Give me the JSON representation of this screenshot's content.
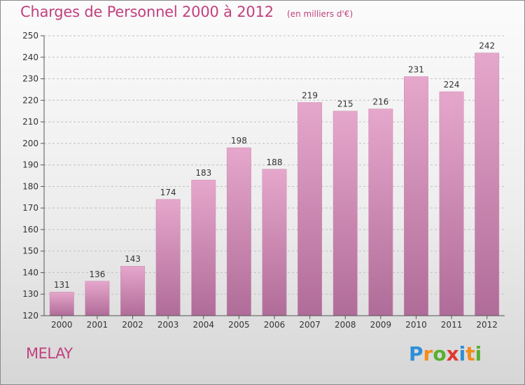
{
  "header": {
    "title": "Charges de Personnel 2000 à 2012",
    "subtitle": "(en milliers d'€)"
  },
  "place": "MELAY",
  "logo": {
    "text": "Proxiti",
    "letters": [
      {
        "ch": "P",
        "color": "#2f8fd8"
      },
      {
        "ch": "r",
        "color": "#f28c1c"
      },
      {
        "ch": "o",
        "color": "#58b030"
      },
      {
        "ch": "x",
        "color": "#e03a2f"
      },
      {
        "ch": "i",
        "color": "#2f8fd8"
      },
      {
        "ch": "t",
        "color": "#f28c1c"
      },
      {
        "ch": "i",
        "color": "#58b030"
      }
    ]
  },
  "colors": {
    "bar_top": "#e6a7cc",
    "bar_bottom": "#b06c98",
    "title": "#c2407e",
    "grid": "#bfbfbf",
    "axis_text": "#333333"
  },
  "chart_data": {
    "type": "bar",
    "title": "Charges de Personnel 2000 à 2012",
    "subtitle": "(en milliers d'€)",
    "categories": [
      "2000",
      "2001",
      "2002",
      "2003",
      "2004",
      "2005",
      "2006",
      "2007",
      "2008",
      "2009",
      "2010",
      "2011",
      "2012"
    ],
    "values": [
      131,
      136,
      143,
      174,
      183,
      198,
      188,
      219,
      215,
      216,
      231,
      224,
      242
    ],
    "ylim": [
      120,
      250
    ],
    "yticks": [
      120,
      130,
      140,
      150,
      160,
      170,
      180,
      190,
      200,
      210,
      220,
      230,
      240,
      250
    ],
    "grid": true,
    "data_labels": true
  }
}
